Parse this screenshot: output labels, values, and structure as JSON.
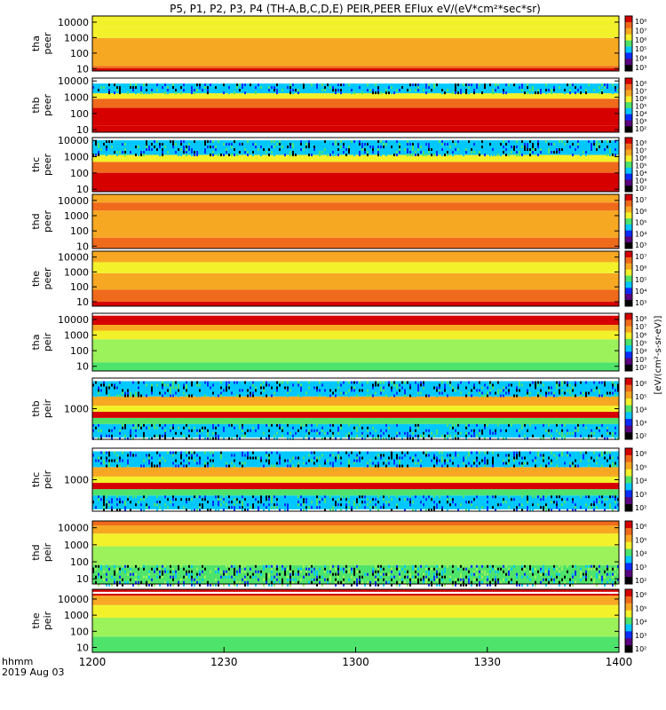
{
  "title": "P5, P1, P2, P3, P4 (TH-A,B,C,D,E) PEIR,PEER EFlux eV/(eV*cm²*sec*sr)",
  "colors": {
    "black": "#000000",
    "purple": "#5a0080",
    "blue": "#0a2cff",
    "cyan": "#00c8ff",
    "green": "#4ee36a",
    "lightgreen": "#9cf25a",
    "yellow": "#f3f12a",
    "orange": "#f7a822",
    "darkorange": "#f06a1c",
    "red": "#d60000"
  },
  "chart_data": {
    "type": "heatmap",
    "x_axis": {
      "range": [
        1200,
        1400
      ],
      "ticks": [
        "1200",
        "1230",
        "1300",
        "1330",
        "1400"
      ],
      "label_line1": "hhmm",
      "label_line2": "2019 Aug 03"
    },
    "colorbar_label": "[eV/(cm²-s-sr-eV)]",
    "panels": [
      {
        "name": "tha peer",
        "probe": "tha",
        "species": "peer",
        "yticks": [
          "10000",
          "1000",
          "100",
          "10"
        ],
        "ytick_vals": [
          10000,
          1000,
          100,
          10
        ],
        "yrange": [
          7,
          25000
        ],
        "cbar_ticks": [
          "10⁸",
          "10⁷",
          "10⁶",
          "10⁵",
          "10⁴",
          "10³"
        ],
        "bands": [
          [
            0,
            0.05,
            "red"
          ],
          [
            0.05,
            0.09,
            "darkorange"
          ],
          [
            0.09,
            0.6,
            "orange"
          ],
          [
            0.6,
            0.8,
            "yellow"
          ],
          [
            0.8,
            0.94,
            "yellow"
          ],
          [
            0.94,
            1,
            "yellow"
          ]
        ]
      },
      {
        "name": "thb peer",
        "probe": "thb",
        "species": "peer",
        "yticks": [
          "10000",
          "1000",
          "100",
          "10"
        ],
        "ytick_vals": [
          10000,
          1000,
          100,
          10
        ],
        "yrange": [
          7,
          15000
        ],
        "cbar_ticks": [
          "10⁸",
          "10⁷",
          "10⁶",
          "10⁵",
          "10⁴",
          "10³",
          "10²"
        ],
        "bands": [
          [
            0,
            0.12,
            "red"
          ],
          [
            0.12,
            0.45,
            "red"
          ],
          [
            0.45,
            0.62,
            "darkorange"
          ],
          [
            0.62,
            0.72,
            "yellow"
          ],
          [
            0.72,
            0.9,
            "noise"
          ],
          [
            0.9,
            1,
            "white"
          ]
        ]
      },
      {
        "name": "thc peer",
        "probe": "thc",
        "species": "peer",
        "yticks": [
          "10000",
          "1000",
          "100",
          "10"
        ],
        "ytick_vals": [
          10000,
          1000,
          100,
          10
        ],
        "yrange": [
          7,
          15000
        ],
        "cbar_ticks": [
          "10⁸",
          "10⁷",
          "10⁶",
          "10⁵",
          "10⁴",
          "10³",
          "10²"
        ],
        "bands": [
          [
            0,
            0.35,
            "red"
          ],
          [
            0.35,
            0.55,
            "darkorange"
          ],
          [
            0.55,
            0.68,
            "yellow"
          ],
          [
            0.68,
            0.95,
            "noise"
          ],
          [
            0.95,
            1,
            "white"
          ]
        ]
      },
      {
        "name": "thd peer",
        "probe": "thd",
        "species": "peer",
        "yticks": [
          "10000",
          "1000",
          "100",
          "10"
        ],
        "ytick_vals": [
          10000,
          1000,
          100,
          10
        ],
        "yrange": [
          7,
          25000
        ],
        "cbar_ticks": [
          "10⁷",
          "10⁶",
          "10⁵",
          "10⁴",
          "10³"
        ],
        "bands": [
          [
            0,
            0.2,
            "darkorange"
          ],
          [
            0.2,
            0.7,
            "orange"
          ],
          [
            0.7,
            0.85,
            "darkorange"
          ],
          [
            0.85,
            1,
            "orange"
          ]
        ]
      },
      {
        "name": "the peer",
        "probe": "the",
        "species": "peer",
        "yticks": [
          "10000",
          "1000",
          "100",
          "10"
        ],
        "ytick_vals": [
          10000,
          1000,
          100,
          10
        ],
        "yrange": [
          5,
          25000
        ],
        "cbar_ticks": [
          "10⁷",
          "10⁶",
          "10⁵",
          "10⁴",
          "10³"
        ],
        "bands": [
          [
            0,
            0.08,
            "red"
          ],
          [
            0.08,
            0.3,
            "darkorange"
          ],
          [
            0.3,
            0.6,
            "orange"
          ],
          [
            0.6,
            0.8,
            "yellow"
          ],
          [
            0.8,
            1,
            "orange"
          ]
        ]
      },
      {
        "name": "tha peir",
        "probe": "tha",
        "species": "peir",
        "yticks": [
          "10000",
          "1000",
          "100",
          "10"
        ],
        "ytick_vals": [
          10000,
          1000,
          100,
          10
        ],
        "yrange": [
          5,
          25000
        ],
        "cbar_ticks": [
          "10⁸",
          "10⁷",
          "10⁶",
          "10⁵",
          "10⁴",
          "10³",
          "10²"
        ],
        "bands": [
          [
            0,
            0.15,
            "green"
          ],
          [
            0.15,
            0.55,
            "lightgreen"
          ],
          [
            0.55,
            0.7,
            "yellow"
          ],
          [
            0.7,
            0.8,
            "orange"
          ],
          [
            0.8,
            0.96,
            "red"
          ],
          [
            0.96,
            1,
            "white"
          ]
        ]
      },
      {
        "name": "thb peir",
        "probe": "thb",
        "species": "peir",
        "yticks": [
          "1000"
        ],
        "ytick_vals": [
          1000
        ],
        "yrange": [
          100,
          10000
        ],
        "cbar_ticks": [
          "10⁶",
          "10⁵",
          "10⁴",
          "10³",
          "10²"
        ],
        "bands": [
          [
            0,
            0.03,
            "white"
          ],
          [
            0.03,
            0.25,
            "noise"
          ],
          [
            0.25,
            0.35,
            "green"
          ],
          [
            0.35,
            0.45,
            "red"
          ],
          [
            0.45,
            0.55,
            "yellow"
          ],
          [
            0.55,
            0.7,
            "orange"
          ],
          [
            0.7,
            0.95,
            "noise"
          ],
          [
            0.95,
            1,
            "white"
          ]
        ]
      },
      {
        "name": "thc peir",
        "probe": "thc",
        "species": "peir",
        "yticks": [
          "1000"
        ],
        "ytick_vals": [
          1000
        ],
        "yrange": [
          100,
          10000
        ],
        "cbar_ticks": [
          "10⁶",
          "10⁵",
          "10⁴",
          "10³",
          "10²"
        ],
        "bands": [
          [
            0,
            0.03,
            "white"
          ],
          [
            0.03,
            0.25,
            "noise"
          ],
          [
            0.25,
            0.35,
            "green"
          ],
          [
            0.35,
            0.45,
            "red"
          ],
          [
            0.45,
            0.55,
            "yellow"
          ],
          [
            0.55,
            0.7,
            "orange"
          ],
          [
            0.7,
            0.95,
            "noise"
          ],
          [
            0.95,
            1,
            "white"
          ]
        ]
      },
      {
        "name": "thd peir",
        "probe": "thd",
        "species": "peir",
        "yticks": [
          "10000",
          "1000",
          "100",
          "10"
        ],
        "ytick_vals": [
          10000,
          1000,
          100,
          10
        ],
        "yrange": [
          5,
          25000
        ],
        "cbar_ticks": [
          "10⁶",
          "10⁵",
          "10⁴",
          "10³",
          "10²"
        ],
        "bands": [
          [
            0,
            0.3,
            "speckle"
          ],
          [
            0.3,
            0.6,
            "lightgreen"
          ],
          [
            0.6,
            0.8,
            "yellow"
          ],
          [
            0.8,
            0.93,
            "orange"
          ],
          [
            0.93,
            1,
            "darkorange"
          ]
        ]
      },
      {
        "name": "the peir",
        "probe": "the",
        "species": "peir",
        "yticks": [
          "10000",
          "1000",
          "100",
          "10"
        ],
        "ytick_vals": [
          10000,
          1000,
          100,
          10
        ],
        "yrange": [
          5,
          40000
        ],
        "cbar_ticks": [
          "10⁶",
          "10⁵",
          "10⁴",
          "10³",
          "10²"
        ],
        "bands": [
          [
            0,
            0.25,
            "green"
          ],
          [
            0.25,
            0.55,
            "lightgreen"
          ],
          [
            0.55,
            0.75,
            "yellow"
          ],
          [
            0.75,
            0.9,
            "orange"
          ],
          [
            0.9,
            0.93,
            "red"
          ],
          [
            0.93,
            0.96,
            "white"
          ],
          [
            0.96,
            1,
            "red"
          ]
        ]
      }
    ]
  }
}
